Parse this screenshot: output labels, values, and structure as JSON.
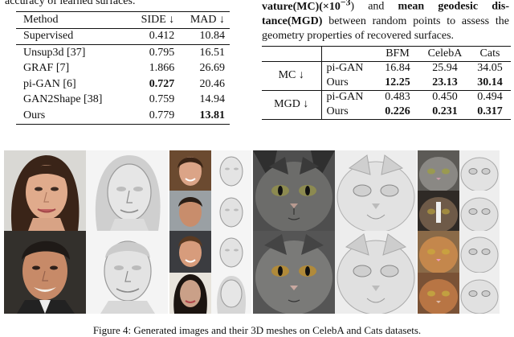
{
  "top_left_caption": "accuracy of learned surfaces.",
  "right_caption": {
    "part1": "vature(MC)(×10",
    "exp": "−3",
    "part2": ") and ",
    "bold2": "mean geodesic dis-tance(MGD)",
    "part3": " between random points to assess the geometry properties of recovered surfaces."
  },
  "table1": {
    "headers": [
      "Method",
      "SIDE ↓",
      "MAD ↓"
    ],
    "supervised": {
      "method": "Supervised",
      "side": "0.412",
      "mad": "10.84"
    },
    "rows": [
      {
        "method": "Unsup3d [37]",
        "side": "0.795",
        "mad": "16.51"
      },
      {
        "method": "GRAF [7]",
        "side": "1.866",
        "mad": "26.69"
      },
      {
        "method": "pi-GAN [6]",
        "side": "0.727",
        "mad": "20.46"
      },
      {
        "method": "GAN2Shape [38]",
        "side": "0.759",
        "mad": "14.94"
      },
      {
        "method": "Ours",
        "side": "0.779",
        "mad": "13.81"
      }
    ]
  },
  "table2": {
    "headers": [
      "BFM",
      "CelebA",
      "Cats"
    ],
    "groups": [
      {
        "metric": "MC ↓",
        "rows": [
          {
            "method": "pi-GAN",
            "values": [
              "16.84",
              "25.94",
              "34.05"
            ]
          },
          {
            "method": "Ours",
            "values": [
              "12.25",
              "23.13",
              "30.14"
            ]
          }
        ]
      },
      {
        "metric": "MGD ↓",
        "rows": [
          {
            "method": "pi-GAN",
            "values": [
              "0.483",
              "0.450",
              "0.494"
            ]
          },
          {
            "method": "Ours",
            "values": [
              "0.226",
              "0.231",
              "0.317"
            ]
          }
        ]
      }
    ]
  },
  "figure_caption": "Figure 4: Generated images and their 3D meshes on CelebA and Cats datasets."
}
